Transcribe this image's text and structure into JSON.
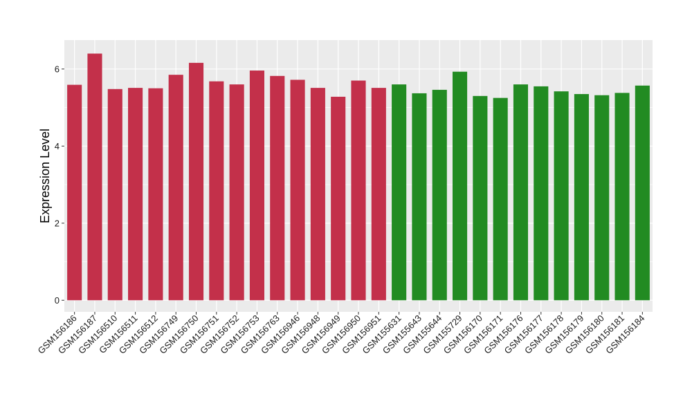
{
  "colors": {
    "group_a": "#C3304A",
    "group_b": "#228B22",
    "panel_bg": "#EBEBEB",
    "grid": "#FFFFFF"
  },
  "chart_data": {
    "type": "bar",
    "ylabel": "Expression Level",
    "xlabel": "",
    "title": "",
    "ylim": [
      -0.3,
      6.75
    ],
    "yticks": [
      0,
      2,
      4,
      6
    ],
    "grid": true,
    "legend": "none",
    "categories": [
      "GSM156186",
      "GSM156187",
      "GSM156510",
      "GSM156511",
      "GSM156512",
      "GSM156749",
      "GSM156750",
      "GSM156751",
      "GSM156752",
      "GSM156753",
      "GSM156763",
      "GSM156946",
      "GSM156948",
      "GSM156949",
      "GSM156950",
      "GSM156951",
      "GSM155631",
      "GSM155643",
      "GSM155644",
      "GSM155729",
      "GSM156170",
      "GSM156171",
      "GSM156176",
      "GSM156177",
      "GSM156178",
      "GSM156179",
      "GSM156180",
      "GSM156181",
      "GSM156184"
    ],
    "values": [
      5.59,
      6.4,
      5.48,
      5.51,
      5.5,
      5.85,
      6.16,
      5.68,
      5.6,
      5.96,
      5.82,
      5.72,
      5.51,
      5.28,
      5.7,
      5.51,
      5.6,
      5.37,
      5.46,
      5.93,
      5.3,
      5.25,
      5.6,
      5.55,
      5.42,
      5.35,
      5.32,
      5.38,
      5.57
    ],
    "groups": [
      "a",
      "a",
      "a",
      "a",
      "a",
      "a",
      "a",
      "a",
      "a",
      "a",
      "a",
      "a",
      "a",
      "a",
      "a",
      "a",
      "b",
      "b",
      "b",
      "b",
      "b",
      "b",
      "b",
      "b",
      "b",
      "b",
      "b",
      "b",
      "b"
    ]
  }
}
